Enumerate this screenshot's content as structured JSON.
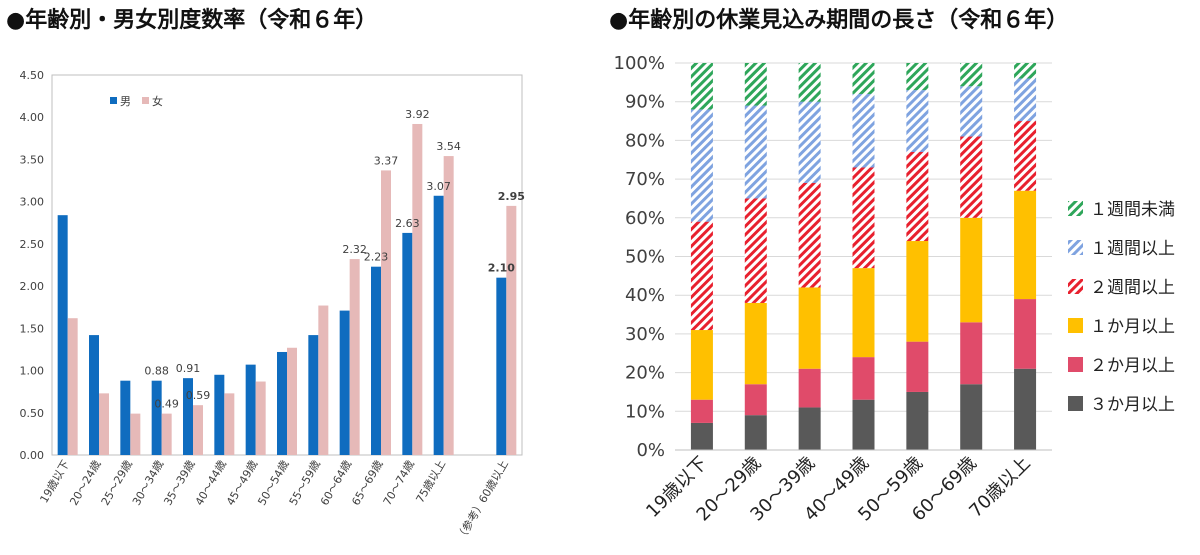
{
  "chart_data": [
    {
      "type": "bar",
      "title": "●年齢別・男女別度数率（令和６年）",
      "categories": [
        "19歳以下",
        "20～24歳",
        "25～29歳",
        "30～34歳",
        "35～39歳",
        "40～44歳",
        "45～49歳",
        "50～54歳",
        "55～59歳",
        "60～64歳",
        "65～69歳",
        "70～74歳",
        "75歳以上",
        "（参考）60歳以上"
      ],
      "series": [
        {
          "name": "男",
          "color": "#0f6cbf",
          "values": [
            2.84,
            1.42,
            0.88,
            0.88,
            0.91,
            0.95,
            1.07,
            1.22,
            1.42,
            1.71,
            2.23,
            2.63,
            3.07,
            2.1
          ]
        },
        {
          "name": "女",
          "color": "#e6b9b8",
          "values": [
            1.62,
            0.73,
            0.49,
            0.49,
            0.59,
            0.73,
            0.87,
            1.27,
            1.77,
            2.32,
            3.37,
            3.92,
            3.54,
            2.95
          ]
        }
      ],
      "data_labels": [
        {
          "category_index": 3,
          "series": 0,
          "text": "0.88"
        },
        {
          "category_index": 3,
          "series": 1,
          "text": "0.49"
        },
        {
          "category_index": 4,
          "series": 0,
          "text": "0.91"
        },
        {
          "category_index": 4,
          "series": 1,
          "text": "0.59"
        },
        {
          "category_index": 9,
          "series": 1,
          "text": "2.32"
        },
        {
          "category_index": 10,
          "series": 0,
          "text": "2.23"
        },
        {
          "category_index": 10,
          "series": 1,
          "text": "3.37"
        },
        {
          "category_index": 11,
          "series": 0,
          "text": "2.63"
        },
        {
          "category_index": 11,
          "series": 1,
          "text": "3.92"
        },
        {
          "category_index": 12,
          "series": 0,
          "text": "3.07"
        },
        {
          "category_index": 12,
          "series": 1,
          "text": "3.54"
        },
        {
          "category_index": 13,
          "series": 0,
          "text": "2.10",
          "bold": true
        },
        {
          "category_index": 13,
          "series": 1,
          "text": "2.95",
          "bold": true
        }
      ],
      "ylim": [
        0,
        4.5
      ],
      "yticks": [
        "0.00",
        "0.50",
        "1.00",
        "1.50",
        "2.00",
        "2.50",
        "3.00",
        "3.50",
        "4.00",
        "4.50"
      ],
      "grid": false,
      "legend_position": "top-left"
    },
    {
      "type": "bar",
      "stacked": true,
      "title": "●年齢別の休業見込み期間の長さ（令和６年）",
      "categories": [
        "19歳以下",
        "20～29歳",
        "30～39歳",
        "40～49歳",
        "50～59歳",
        "60～69歳",
        "70歳以上"
      ],
      "series": [
        {
          "name": "３か月以上",
          "color": "#595959",
          "pattern": "solid",
          "values": [
            7,
            9,
            11,
            13,
            15,
            17,
            21
          ]
        },
        {
          "name": "２か月以上",
          "color": "#e04b6a",
          "pattern": "solid",
          "values": [
            6,
            8,
            10,
            11,
            13,
            16,
            18
          ]
        },
        {
          "name": "１か月以上",
          "color": "#ffc000",
          "pattern": "solid",
          "values": [
            18,
            21,
            21,
            23,
            26,
            27,
            28
          ]
        },
        {
          "name": "２週間以上",
          "color": "#e8202e",
          "pattern": "hatch",
          "values": [
            28,
            27,
            27,
            26,
            23,
            21,
            18
          ]
        },
        {
          "name": "１週間以上",
          "color": "#7fa3e0",
          "pattern": "hatch",
          "values": [
            29,
            24,
            21,
            19,
            16,
            13,
            11
          ]
        },
        {
          "name": "１週間未満",
          "color": "#2ea65a",
          "pattern": "hatch",
          "values": [
            12,
            11,
            10,
            8,
            7,
            6,
            4
          ]
        }
      ],
      "ylim": [
        0,
        100
      ],
      "yticks": [
        "0%",
        "10%",
        "20%",
        "30%",
        "40%",
        "50%",
        "60%",
        "70%",
        "80%",
        "90%",
        "100%"
      ],
      "grid": true,
      "legend_position": "right",
      "legend_order": [
        "１週間未満",
        "１週間以上",
        "２週間以上",
        "１か月以上",
        "２か月以上",
        "３か月以上"
      ]
    }
  ]
}
